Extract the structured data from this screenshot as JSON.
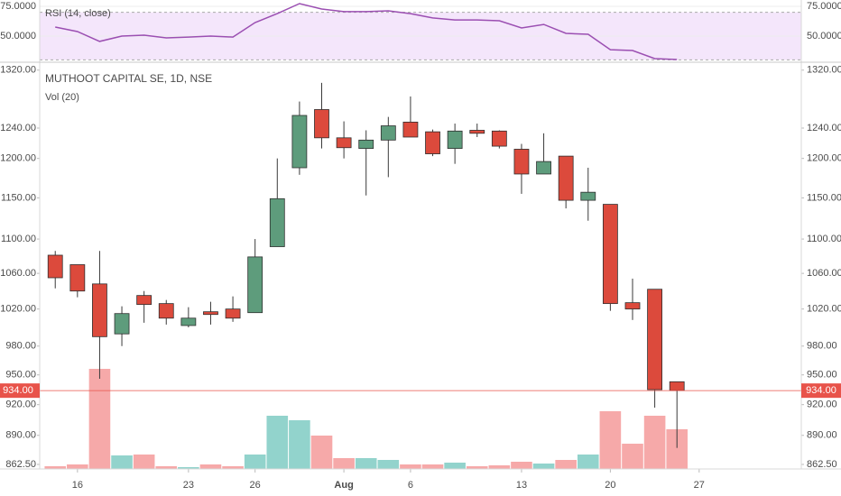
{
  "chart_data": {
    "type": "candlestick",
    "title": "MUTHOOT CAPITAL SE, 1D, NSE",
    "log": true,
    "ylim": [
      858.3,
      1330
    ],
    "yticks": [
      {
        "value": 862.5,
        "label": "862.50"
      },
      {
        "value": 890,
        "label": "890.00"
      },
      {
        "value": 920,
        "label": "920.00"
      },
      {
        "value": 950,
        "label": "950.00"
      },
      {
        "value": 980,
        "label": "980.00"
      },
      {
        "value": 1020,
        "label": "1020.00"
      },
      {
        "value": 1060,
        "label": "1060.00"
      },
      {
        "value": 1100,
        "label": "1100.00"
      },
      {
        "value": 1150,
        "label": "1150.00"
      },
      {
        "value": 1200,
        "label": "1200.00"
      },
      {
        "value": 1240,
        "label": "1240.00"
      },
      {
        "value": 1320,
        "label": "1320.00"
      }
    ],
    "xlim": [
      -0.7,
      33.6
    ],
    "xticks": [
      {
        "value": 1,
        "label": "16"
      },
      {
        "value": 6,
        "label": "23"
      },
      {
        "value": 9,
        "label": "26"
      },
      {
        "value": 13,
        "label": "Aug"
      },
      {
        "value": 16,
        "label": "6"
      },
      {
        "value": 21,
        "label": "13"
      },
      {
        "value": 25,
        "label": "20"
      },
      {
        "value": 29,
        "label": "27"
      }
    ],
    "open": [
      1081,
      1070,
      1048,
      993,
      1035,
      1026,
      1002,
      1017,
      1020,
      1016,
      1091,
      1188,
      1265,
      1227,
      1213,
      1224,
      1248,
      1235,
      1213,
      1237,
      1236,
      1212,
      1180,
      1203,
      1147,
      1142,
      1027,
      1042,
      943
    ],
    "high": [
      1086,
      1070,
      1086,
      1023,
      1040,
      1030,
      1022,
      1028,
      1034,
      1100,
      1200,
      1276,
      1302,
      1249,
      1237,
      1255,
      1283,
      1238,
      1246,
      1246,
      1237,
      1219,
      1233,
      1203,
      1188,
      1142,
      1054,
      1042,
      943
    ],
    "low": [
      1043,
      1033,
      946,
      980,
      1005,
      1003,
      1000,
      1003,
      1006,
      1016,
      1091,
      1179,
      1213,
      1200,
      1153,
      1176,
      1228,
      1203,
      1193,
      1228,
      1213,
      1155,
      1180,
      1137,
      1122,
      1018,
      1008,
      917,
      878
    ],
    "close": [
      1055,
      1040,
      990,
      1015,
      1025,
      1010,
      1010,
      1014,
      1010,
      1079,
      1149,
      1257,
      1227,
      1214,
      1224,
      1243,
      1228,
      1206,
      1236,
      1233,
      1216,
      1180,
      1196,
      1147,
      1157,
      1026,
      1020,
      935,
      934
    ],
    "up_color": "#5e9c7c",
    "down_color": "#dc4a3c",
    "volume": {
      "label": "Vol (20)",
      "values": [
        3,
        5,
        111,
        15,
        16,
        3,
        2,
        5,
        3,
        16,
        59,
        54,
        37,
        12,
        12,
        10,
        5,
        5,
        7,
        3,
        4,
        8,
        6,
        10,
        16,
        64,
        28,
        59,
        44
      ],
      "ylim": [
        0,
        450
      ],
      "up_color": "#92d3cc",
      "down_color": "#f6a9a9"
    },
    "rsi": {
      "label": "RSI (14, close)",
      "values": [
        57.6,
        53.8,
        45.5,
        50,
        50.8,
        48.5,
        49.2,
        50,
        49.2,
        61.4,
        68.9,
        77.3,
        72.7,
        70.5,
        70.5,
        71.2,
        68.9,
        65.2,
        63.6,
        63.6,
        62.9,
        56.8,
        59.8,
        52.3,
        51.5,
        38.6,
        37.9,
        31.1,
        30.3
      ],
      "ylim": [
        28.8,
        80.3
      ],
      "yticks": [
        {
          "value": 50,
          "label": "50.0000"
        },
        {
          "value": 75,
          "label": "75.0000"
        }
      ],
      "band": [
        30,
        70
      ],
      "color": "#9b4fb2",
      "band_color": "#f4e6fb"
    },
    "last_price": {
      "value": 934,
      "label": "934.00",
      "color": "#e8534a"
    }
  }
}
